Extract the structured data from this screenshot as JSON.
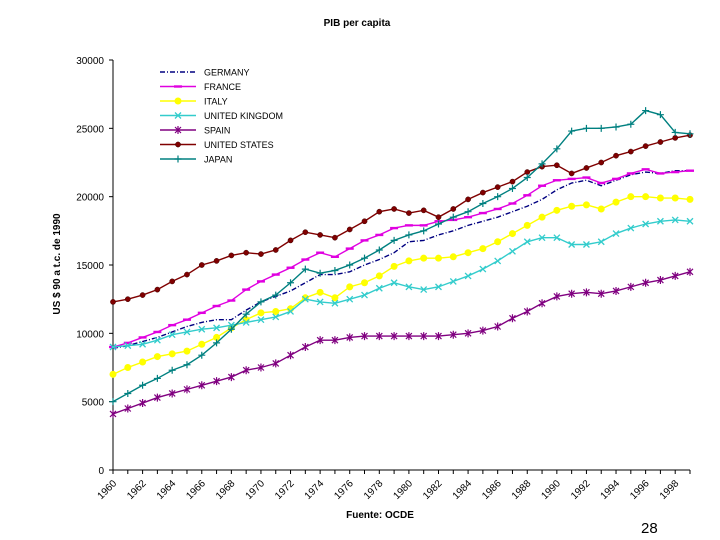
{
  "chart_data": {
    "type": "line",
    "title": "PIB per capita",
    "ylabel": "US $ 90 a t.c. de 1990",
    "xlabel": "Fuente: OCDE",
    "ylim": [
      0,
      30000
    ],
    "yticks": [
      0,
      5000,
      10000,
      15000,
      20000,
      25000,
      30000
    ],
    "xlim": [
      1960,
      1999
    ],
    "xticks": [
      "1960",
      "1962",
      "1964",
      "1966",
      "1968",
      "1970",
      "1972",
      "1974",
      "1976",
      "1978",
      "1980",
      "1982",
      "1984",
      "1986",
      "1988",
      "1990",
      "1992",
      "1994",
      "1996",
      "1998"
    ],
    "x": [
      1960,
      1961,
      1962,
      1963,
      1964,
      1965,
      1966,
      1967,
      1968,
      1969,
      1970,
      1971,
      1972,
      1973,
      1974,
      1975,
      1976,
      1977,
      1978,
      1979,
      1980,
      1981,
      1982,
      1983,
      1984,
      1985,
      1986,
      1987,
      1988,
      1989,
      1990,
      1991,
      1992,
      1993,
      1994,
      1995,
      1996,
      1997,
      1998,
      1999
    ],
    "series": [
      {
        "name": "GERMANY",
        "color": "#000080",
        "marker": "none",
        "dash": "dashdot",
        "values": [
          8900,
          9100,
          9400,
          9700,
          10100,
          10500,
          10800,
          11000,
          11000,
          11700,
          12300,
          12700,
          13100,
          13700,
          14300,
          14300,
          14500,
          15000,
          15400,
          15900,
          16700,
          16800,
          17200,
          17500,
          17900,
          18200,
          18500,
          18900,
          19300,
          19800,
          20500,
          21000,
          21200,
          20800,
          21200,
          21600,
          21800,
          21700,
          21900,
          21900
        ]
      },
      {
        "name": "FRANCE",
        "color": "#e000e0",
        "marker": "dash",
        "values": [
          9000,
          9300,
          9700,
          10100,
          10600,
          11000,
          11500,
          12000,
          12400,
          13200,
          13800,
          14300,
          14800,
          15400,
          15900,
          15600,
          16200,
          16800,
          17200,
          17700,
          17900,
          17900,
          18200,
          18300,
          18500,
          18800,
          19100,
          19500,
          20100,
          20800,
          21200,
          21300,
          21400,
          21000,
          21300,
          21700,
          22000,
          21700,
          21800,
          21900
        ]
      },
      {
        "name": "ITALY",
        "color": "#ffff00",
        "marker": "circle",
        "values": [
          7000,
          7500,
          7900,
          8300,
          8500,
          8700,
          9200,
          9700,
          10400,
          11000,
          11500,
          11600,
          11800,
          12600,
          13000,
          12600,
          13400,
          13700,
          14200,
          14900,
          15300,
          15500,
          15500,
          15600,
          15900,
          16200,
          16700,
          17300,
          17900,
          18500,
          19000,
          19300,
          19400,
          19100,
          19600,
          20000,
          20000,
          19900,
          19900,
          19800
        ]
      },
      {
        "name": "UNITED KINGDOM",
        "color": "#33cccc",
        "marker": "x",
        "values": [
          9000,
          9100,
          9200,
          9500,
          9900,
          10100,
          10300,
          10400,
          10600,
          10800,
          11000,
          11200,
          11600,
          12500,
          12300,
          12200,
          12500,
          12800,
          13300,
          13700,
          13400,
          13200,
          13400,
          13800,
          14200,
          14700,
          15300,
          16000,
          16700,
          17000,
          17000,
          16500,
          16500,
          16700,
          17300,
          17700,
          18000,
          18200,
          18300,
          18200
        ]
      },
      {
        "name": "SPAIN",
        "color": "#800080",
        "marker": "star",
        "values": [
          4100,
          4500,
          4900,
          5300,
          5600,
          5900,
          6200,
          6500,
          6800,
          7300,
          7500,
          7800,
          8400,
          9000,
          9500,
          9500,
          9700,
          9800,
          9800,
          9800,
          9800,
          9800,
          9800,
          9900,
          10000,
          10200,
          10500,
          11100,
          11600,
          12200,
          12700,
          12900,
          13000,
          12900,
          13100,
          13400,
          13700,
          13900,
          14200,
          14500
        ]
      },
      {
        "name": "UNITED STATES",
        "color": "#800000",
        "marker": "dot",
        "values": [
          12300,
          12500,
          12800,
          13200,
          13800,
          14300,
          15000,
          15300,
          15700,
          15900,
          15800,
          16100,
          16800,
          17400,
          17200,
          17000,
          17600,
          18200,
          18900,
          19100,
          18800,
          19000,
          18500,
          19100,
          19800,
          20300,
          20700,
          21100,
          21800,
          22200,
          22300,
          21700,
          22100,
          22500,
          23000,
          23300,
          23700,
          24000,
          24300,
          24500
        ]
      },
      {
        "name": "JAPAN",
        "color": "#008080",
        "marker": "plus",
        "values": [
          5000,
          5600,
          6200,
          6700,
          7300,
          7700,
          8400,
          9300,
          10300,
          11400,
          12300,
          12800,
          13700,
          14700,
          14400,
          14600,
          15000,
          15500,
          16100,
          16800,
          17200,
          17500,
          18000,
          18500,
          18900,
          19500,
          20000,
          20600,
          21400,
          22400,
          23500,
          24800,
          25000,
          25000,
          25100,
          25300,
          26300,
          26000,
          24700,
          24600
        ]
      }
    ]
  },
  "page_number": "28"
}
